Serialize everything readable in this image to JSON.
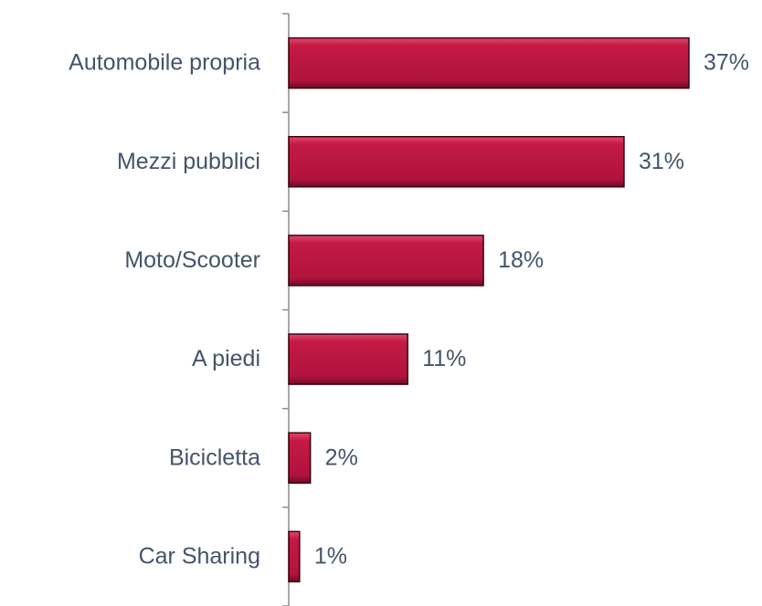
{
  "chart_data": {
    "type": "barh",
    "categories": [
      "Automobile propria",
      "Mezzi pubblici",
      "Moto/Scooter",
      "A piedi",
      "Bicicletta",
      "Car Sharing"
    ],
    "values": [
      37,
      31,
      18,
      11,
      2,
      1
    ],
    "value_labels": [
      "37%",
      "31%",
      "18%",
      "11%",
      "2%",
      "1%"
    ],
    "color": "#c41a45"
  }
}
